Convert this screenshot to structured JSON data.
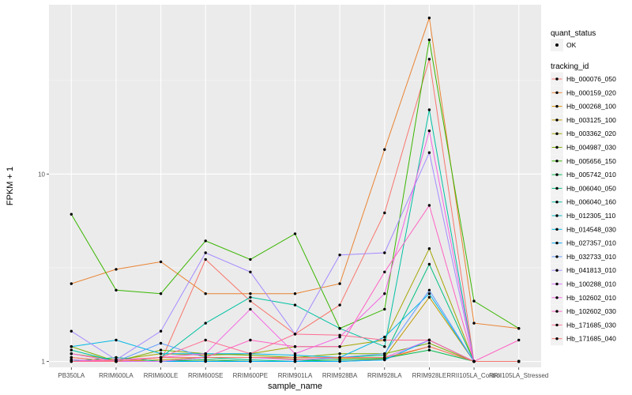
{
  "chart_data": {
    "type": "line",
    "xlabel": "sample_name",
    "ylabel": "FPKM + 1",
    "y_scale": "log10",
    "ylim": [
      0.93,
      80
    ],
    "y_ticks": [
      1,
      10
    ],
    "y_tick_labels": [
      "1",
      "10"
    ],
    "grid": true,
    "legend_position": "right",
    "categories": [
      "PB350LA",
      "RRIM600LA",
      "RRIM600LE",
      "RRIM600SE",
      "RRIM600PE",
      "RRIM901LA",
      "RRIM928BA",
      "RRIM928LA",
      "RRIM928LE",
      "RRII105LA_Control",
      "RRII105LA_Stressed"
    ],
    "shape_legend": {
      "title": "quant_status",
      "items": [
        "OK"
      ]
    },
    "color_legend_title": "tracking_id",
    "series": [
      {
        "name": "Hb_000076_050",
        "color": "#F8766D",
        "values": [
          1.0,
          1.0,
          1.0,
          3.5,
          2.1,
          1.4,
          2.0,
          6.2,
          41.0,
          1.0,
          1.0
        ]
      },
      {
        "name": "Hb_000159_020",
        "color": "#EA8331",
        "values": [
          2.6,
          3.1,
          3.4,
          2.3,
          2.3,
          2.3,
          2.6,
          13.5,
          68.0,
          1.6,
          1.5
        ]
      },
      {
        "name": "Hb_000268_100",
        "color": "#D89000",
        "values": [
          1.0,
          1.0,
          1.0,
          1.02,
          1.0,
          1.0,
          1.0,
          1.03,
          1.2,
          1.0,
          1.0
        ]
      },
      {
        "name": "Hb_003125_100",
        "color": "#C09B00",
        "values": [
          1.05,
          1.0,
          1.02,
          1.05,
          1.05,
          1.03,
          1.04,
          1.05,
          2.2,
          1.0,
          1.0
        ]
      },
      {
        "name": "Hb_003362_020",
        "color": "#A3A500",
        "values": [
          1.1,
          1.02,
          1.1,
          1.08,
          1.1,
          1.2,
          1.2,
          1.3,
          4.0,
          1.0,
          1.0
        ]
      },
      {
        "name": "Hb_004987_030",
        "color": "#7CAE00",
        "values": [
          1.2,
          1.0,
          1.15,
          1.1,
          1.08,
          1.05,
          1.1,
          1.1,
          1.25,
          1.0,
          1.0
        ]
      },
      {
        "name": "Hb_005656_150",
        "color": "#39B600",
        "values": [
          6.1,
          2.4,
          2.3,
          4.4,
          3.5,
          4.8,
          1.5,
          1.9,
          52.0,
          2.1,
          1.5
        ]
      },
      {
        "name": "Hb_005742_010",
        "color": "#00BB4E",
        "values": [
          1.02,
          1.0,
          1.0,
          1.02,
          1.0,
          1.0,
          1.02,
          1.04,
          1.15,
          1.0,
          1.0
        ]
      },
      {
        "name": "Hb_006040_050",
        "color": "#00BF7D",
        "values": [
          1.0,
          1.05,
          1.0,
          1.05,
          1.02,
          1.0,
          1.05,
          1.08,
          3.3,
          1.0,
          1.0
        ]
      },
      {
        "name": "Hb_006040_160",
        "color": "#00C1A3",
        "values": [
          1.15,
          1.0,
          1.05,
          1.6,
          2.2,
          2.0,
          1.5,
          1.2,
          22.0,
          1.0,
          1.0
        ]
      },
      {
        "name": "Hb_012305_110",
        "color": "#00BFC4",
        "values": [
          1.0,
          1.0,
          1.0,
          1.0,
          1.0,
          1.0,
          1.0,
          1.02,
          1.3,
          1.0,
          1.0
        ]
      },
      {
        "name": "Hb_014548_030",
        "color": "#00B8E5",
        "values": [
          1.2,
          1.3,
          1.1,
          1.1,
          1.1,
          1.08,
          1.05,
          1.35,
          2.3,
          1.0,
          1.0
        ]
      },
      {
        "name": "Hb_027357_010",
        "color": "#00ABFD",
        "values": [
          1.0,
          1.0,
          1.0,
          1.0,
          1.0,
          1.0,
          1.0,
          1.02,
          1.3,
          1.0,
          1.0
        ]
      },
      {
        "name": "Hb_032733_010",
        "color": "#619CFF",
        "values": [
          1.0,
          1.0,
          1.25,
          1.05,
          1.05,
          1.05,
          1.05,
          1.1,
          2.4,
          1.0,
          1.0
        ]
      },
      {
        "name": "Hb_041813_010",
        "color": "#A58AFF",
        "values": [
          1.45,
          1.02,
          1.45,
          3.8,
          3.0,
          1.4,
          3.7,
          3.8,
          13.0,
          1.0,
          1.0
        ]
      },
      {
        "name": "Hb_100288_010",
        "color": "#DB72FB",
        "values": [
          1.02,
          1.0,
          1.0,
          1.05,
          1.05,
          1.02,
          1.05,
          1.05,
          1.3,
          1.0,
          1.0
        ]
      },
      {
        "name": "Hb_102602_010",
        "color": "#F564E3",
        "values": [
          1.1,
          1.0,
          1.05,
          1.1,
          1.9,
          1.1,
          1.35,
          2.3,
          17.0,
          1.0,
          1.0
        ]
      },
      {
        "name": "Hb_102602_030",
        "color": "#FF61C3",
        "values": [
          1.0,
          1.02,
          1.05,
          1.05,
          1.3,
          1.2,
          1.2,
          3.0,
          6.8,
          1.0,
          1.3
        ]
      },
      {
        "name": "Hb_171685_030",
        "color": "#FF6C91",
        "values": [
          1.0,
          1.0,
          1.05,
          1.3,
          1.1,
          1.4,
          1.38,
          1.3,
          1.3,
          1.0,
          1.0
        ]
      },
      {
        "name": "Hb_171685_040",
        "color": "#F8766D",
        "values": [
          1.05,
          1.0,
          1.05,
          1.05,
          1.05,
          1.05,
          1.05,
          1.05,
          1.2,
          1.0,
          1.0
        ]
      }
    ]
  }
}
